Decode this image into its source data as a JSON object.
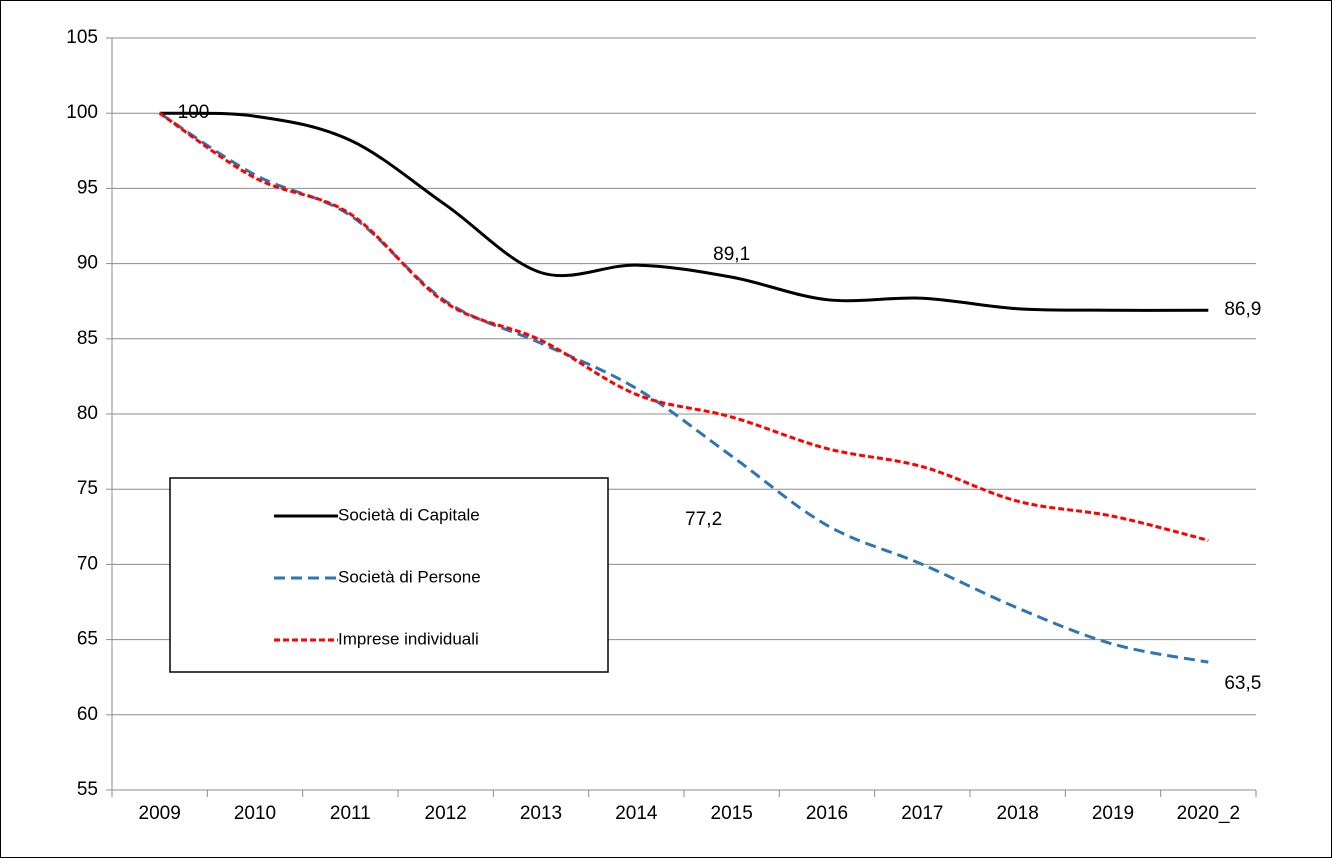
{
  "chart_data": {
    "type": "line",
    "categories": [
      "2009",
      "2010",
      "2011",
      "2012",
      "2013",
      "2014",
      "2015",
      "2016",
      "2017",
      "2018",
      "2019",
      "2020_2"
    ],
    "series": [
      {
        "name": "Società di Capitale",
        "color": "#000000",
        "line_style": "solid",
        "values": [
          100,
          99.8,
          98.2,
          93.9,
          89.4,
          89.9,
          89.1,
          87.6,
          87.7,
          87.0,
          86.9,
          86.9
        ],
        "value_labels": [
          "100",
          null,
          null,
          null,
          null,
          null,
          "89,1",
          null,
          null,
          null,
          null,
          "86,9"
        ]
      },
      {
        "name": "Società di Persone",
        "color": "#2e75b6",
        "line_style": "dashed",
        "values": [
          100,
          95.9,
          93.2,
          87.5,
          84.7,
          81.7,
          77.2,
          72.6,
          70.0,
          67.1,
          64.7,
          63.5
        ],
        "value_labels": [
          null,
          null,
          null,
          null,
          null,
          null,
          "77,2",
          null,
          null,
          null,
          null,
          "63,5"
        ]
      },
      {
        "name": "Imprese individuali",
        "color": "#ff0000",
        "line_style": "dotted",
        "values": [
          100,
          95.7,
          93.3,
          87.4,
          84.9,
          81.3,
          79.8,
          77.7,
          76.5,
          74.2,
          73.2,
          71.6
        ]
      }
    ],
    "ylim": [
      55,
      105
    ],
    "yticks": [
      55,
      60,
      65,
      70,
      75,
      80,
      85,
      90,
      95,
      100,
      105
    ],
    "grid": true,
    "legend": "lower-left"
  }
}
